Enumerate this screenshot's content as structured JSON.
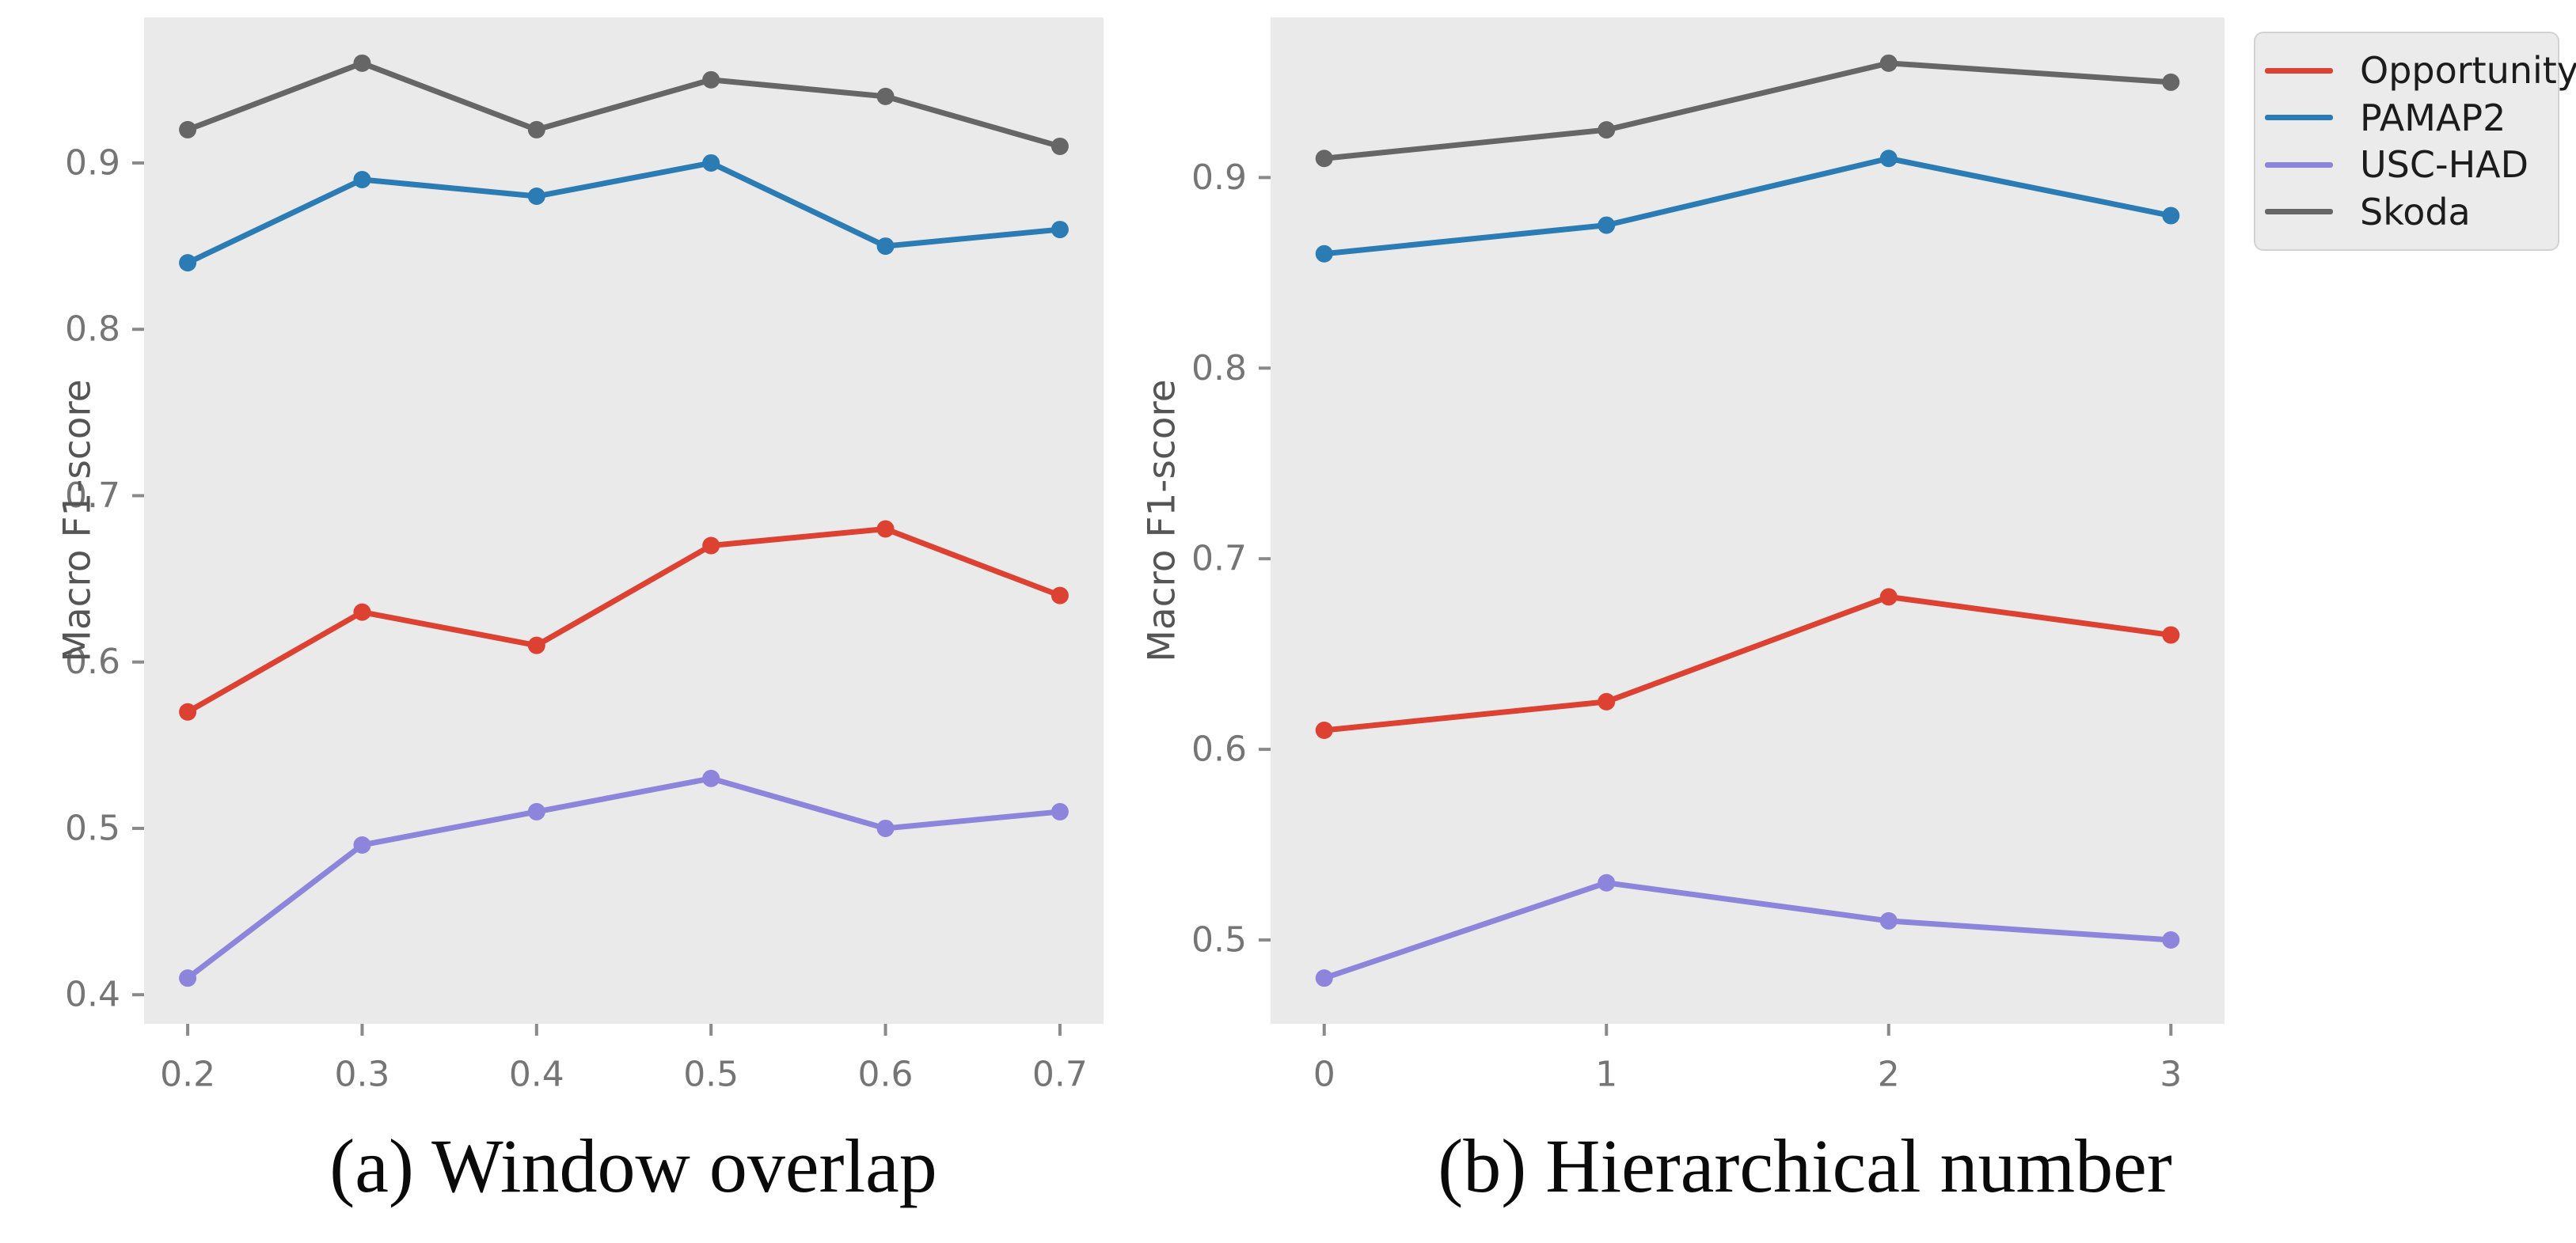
{
  "figure": {
    "ylabel": "Macro F1-score",
    "background_color": "#ffffff",
    "plot_background_color": "#eaeaea",
    "tick_color": "#8a8a8a",
    "tick_label_color": "#757575",
    "axis_label_color": "#555555"
  },
  "legend": {
    "position": "top-right",
    "items": [
      {
        "label": "Opportunity",
        "color": "#dc4132"
      },
      {
        "label": "PAMAP2",
        "color": "#2b7bb4"
      },
      {
        "label": "USC-HAD",
        "color": "#8d85dc"
      },
      {
        "label": "Skoda",
        "color": "#666666"
      }
    ]
  },
  "chart_data": [
    {
      "type": "line",
      "caption": "(a) Window overlap",
      "xlabel": "",
      "ylabel": "Macro F1-score",
      "x": [
        0.2,
        0.3,
        0.4,
        0.5,
        0.6,
        0.7
      ],
      "xticklabels": [
        "0.2",
        "0.3",
        "0.4",
        "0.5",
        "0.6",
        "0.7"
      ],
      "yticks": [
        0.4,
        0.5,
        0.6,
        0.7,
        0.8,
        0.9
      ],
      "yticklabels": [
        "0.4",
        "0.5",
        "0.6",
        "0.7",
        "0.8",
        "0.9"
      ],
      "xlim": [
        0.175,
        0.725
      ],
      "ylim": [
        0.3825,
        0.9875
      ],
      "grid": false,
      "legend_position": "figure-top-right",
      "series": [
        {
          "name": "Opportunity",
          "color": "#dc4132",
          "values": [
            0.57,
            0.63,
            0.61,
            0.67,
            0.68,
            0.64
          ]
        },
        {
          "name": "PAMAP2",
          "color": "#2b7bb4",
          "values": [
            0.84,
            0.89,
            0.88,
            0.9,
            0.85,
            0.86
          ]
        },
        {
          "name": "USC-HAD",
          "color": "#8d85dc",
          "values": [
            0.41,
            0.49,
            0.51,
            0.53,
            0.5,
            0.51
          ]
        },
        {
          "name": "Skoda",
          "color": "#666666",
          "values": [
            0.92,
            0.96,
            0.92,
            0.95,
            0.94,
            0.91
          ]
        }
      ]
    },
    {
      "type": "line",
      "caption": "(b) Hierarchical number",
      "xlabel": "",
      "ylabel": "Macro F1-score",
      "x": [
        0,
        1,
        2,
        3
      ],
      "xticklabels": [
        "0",
        "1",
        "2",
        "3"
      ],
      "yticks": [
        0.5,
        0.6,
        0.7,
        0.8,
        0.9
      ],
      "yticklabels": [
        "0.5",
        "0.6",
        "0.7",
        "0.8",
        "0.9"
      ],
      "xlim": [
        -0.19,
        3.19
      ],
      "ylim": [
        0.456,
        0.984
      ],
      "grid": false,
      "legend_position": "figure-top-right",
      "series": [
        {
          "name": "Opportunity",
          "color": "#dc4132",
          "values": [
            0.61,
            0.625,
            0.68,
            0.66
          ]
        },
        {
          "name": "PAMAP2",
          "color": "#2b7bb4",
          "values": [
            0.86,
            0.875,
            0.91,
            0.88
          ]
        },
        {
          "name": "USC-HAD",
          "color": "#8d85dc",
          "values": [
            0.48,
            0.53,
            0.51,
            0.5
          ]
        },
        {
          "name": "Skoda",
          "color": "#666666",
          "values": [
            0.91,
            0.925,
            0.96,
            0.95
          ]
        }
      ]
    }
  ]
}
